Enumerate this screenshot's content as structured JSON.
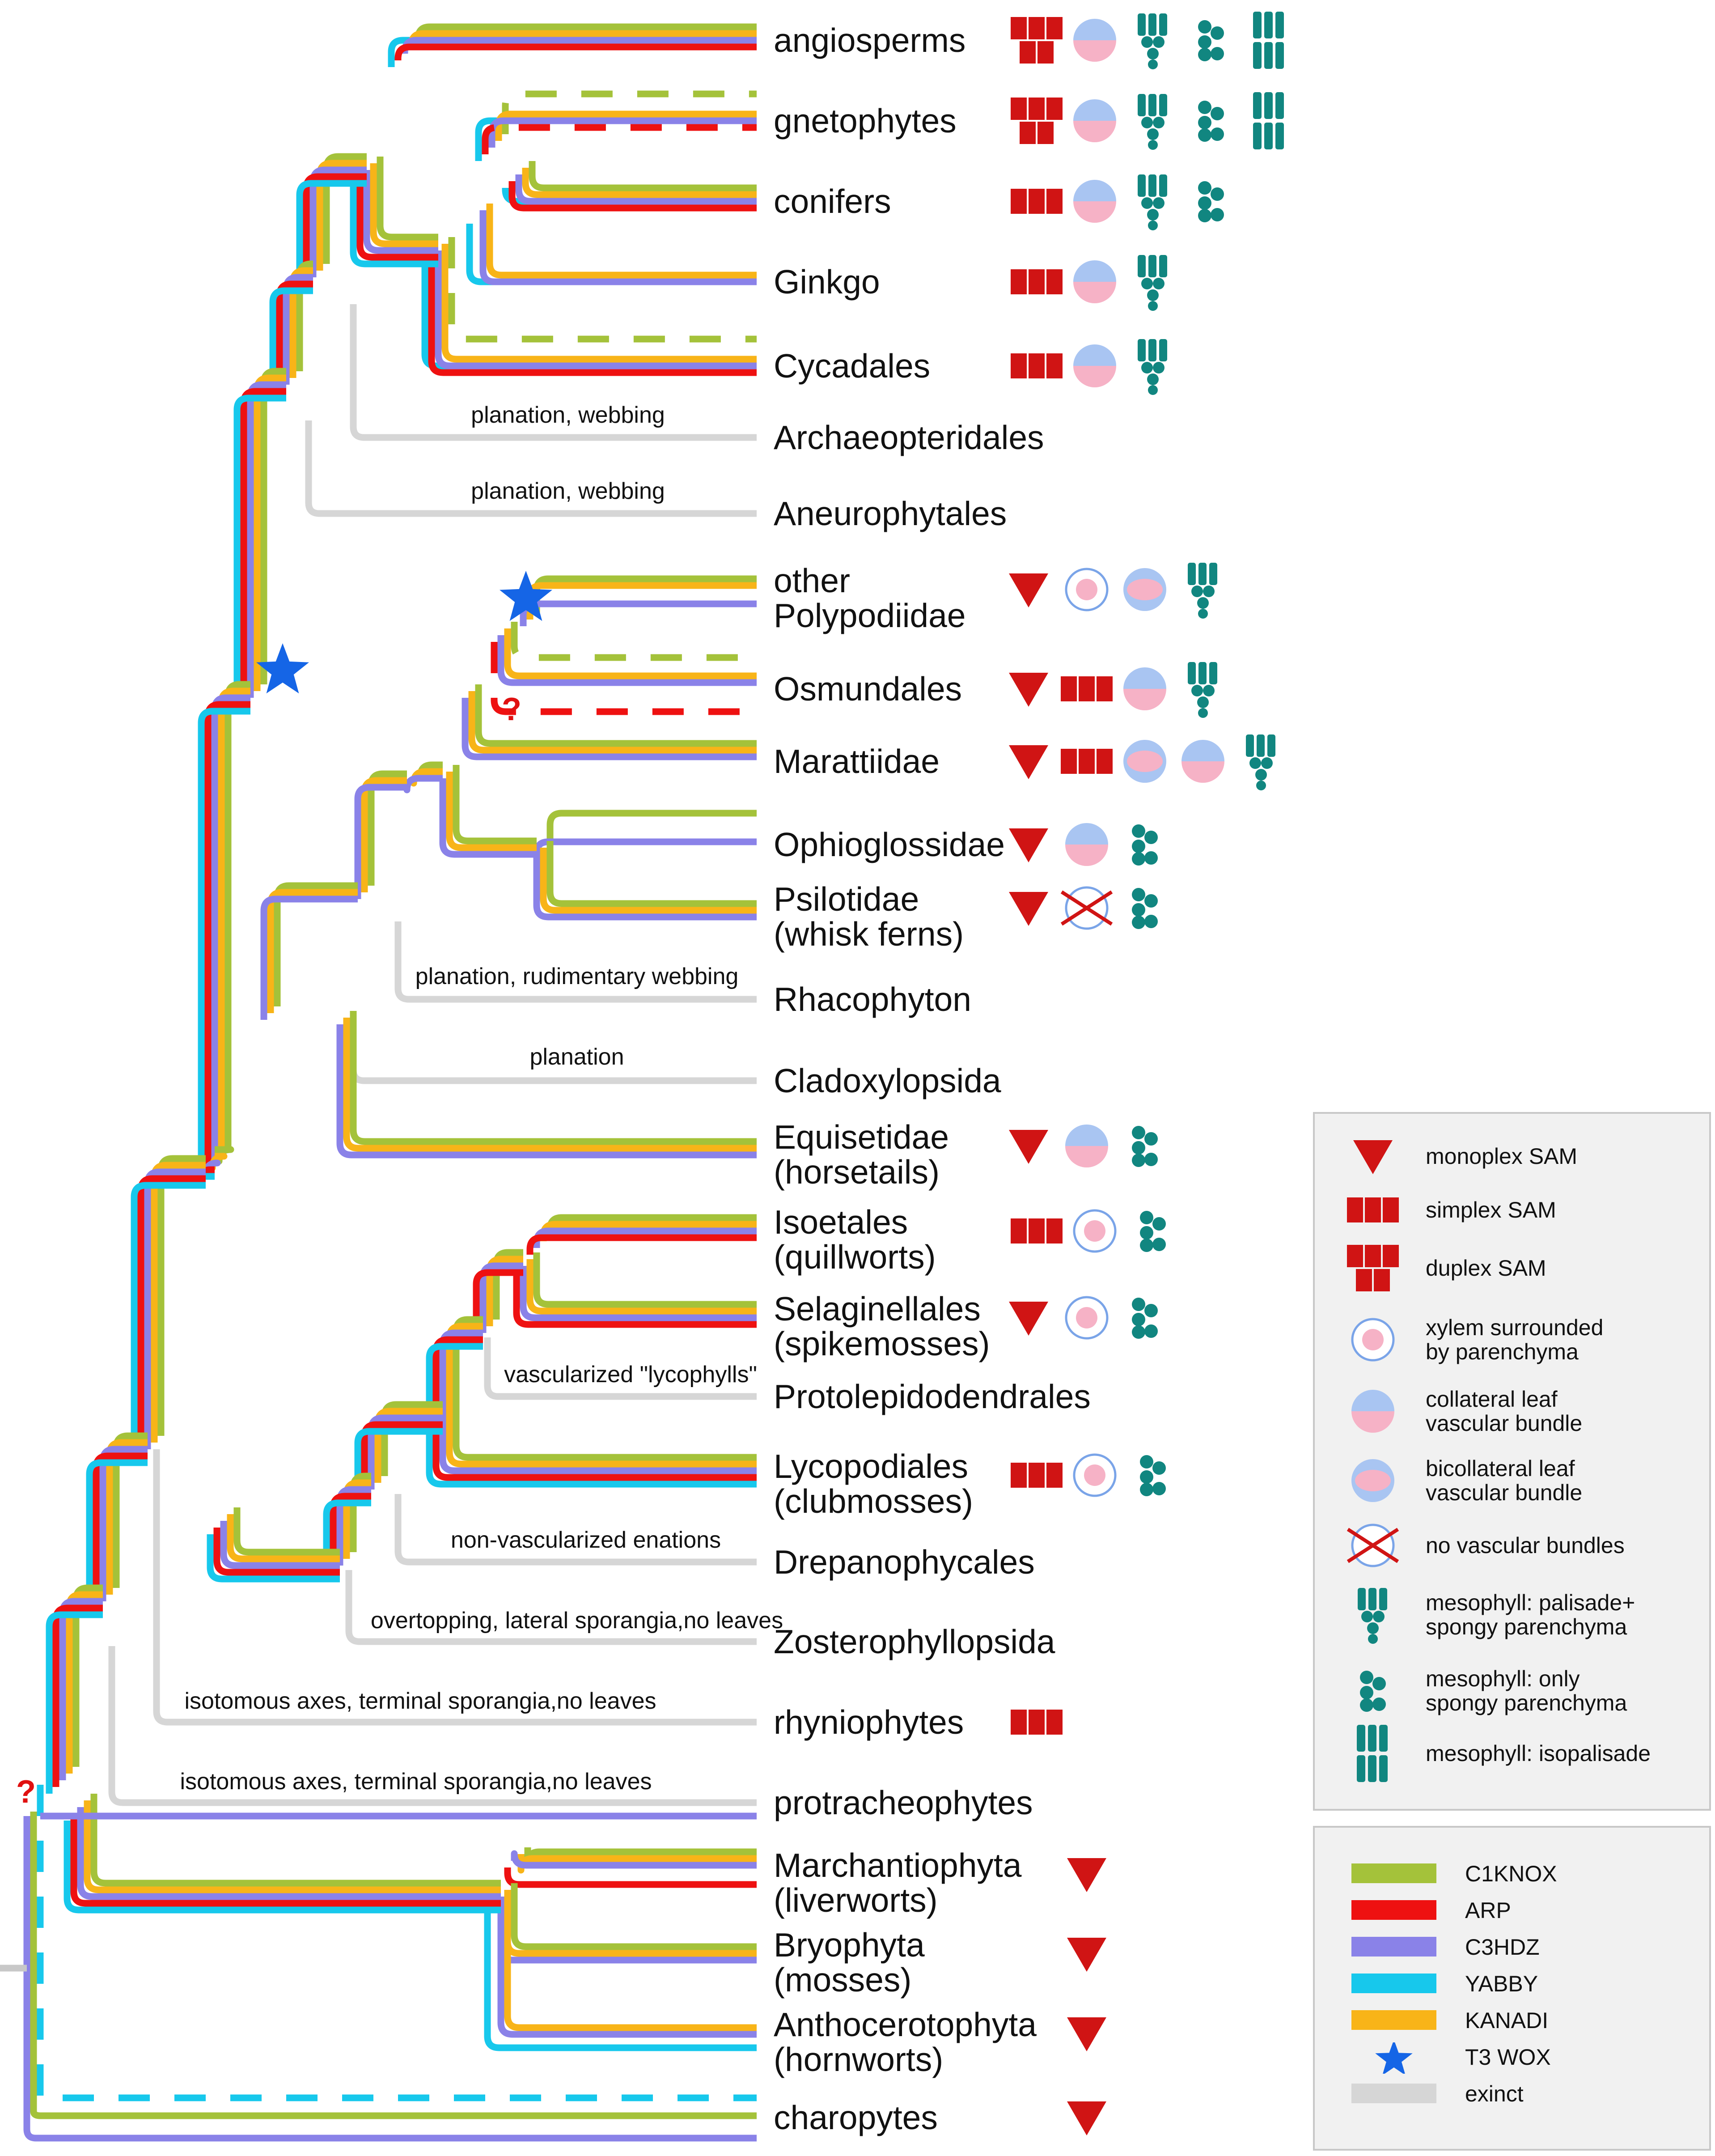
{
  "taxa": [
    {
      "id": "angio",
      "label": "angiosperms",
      "traits": [
        "duplex",
        "collateral",
        "palisade",
        "spongy",
        "isopalisade"
      ]
    },
    {
      "id": "gneto",
      "label": "gnetophytes",
      "traits": [
        "duplex",
        "collateral",
        "palisade",
        "spongy",
        "isopalisade"
      ]
    },
    {
      "id": "conif",
      "label": "conifers",
      "traits": [
        "simplex",
        "collateral",
        "palisade",
        "spongy"
      ]
    },
    {
      "id": "ginkgo",
      "label": "Ginkgo",
      "traits": [
        "simplex",
        "collateral",
        "palisade"
      ]
    },
    {
      "id": "cycad",
      "label": "Cycadales",
      "traits": [
        "simplex",
        "collateral",
        "palisade"
      ]
    },
    {
      "id": "archaeo",
      "label": "Archaeopteridales",
      "traits": []
    },
    {
      "id": "aneuro",
      "label": "Aneurophytales",
      "traits": []
    },
    {
      "id": "poly",
      "label": "other\nPolypodiidae",
      "traits": [
        "monoplex",
        "xylem",
        "bicollateral",
        "palisade"
      ]
    },
    {
      "id": "osmund",
      "label": "Osmundales",
      "traits": [
        "monoplex",
        "simplex",
        "collateral",
        "palisade"
      ]
    },
    {
      "id": "maratt",
      "label": "Marattiidae",
      "traits": [
        "monoplex",
        "simplex",
        "bicollateral",
        "collateral",
        "palisade"
      ]
    },
    {
      "id": "ophio",
      "label": "Ophioglossidae",
      "traits": [
        "monoplex",
        "collateral",
        "spongy"
      ]
    },
    {
      "id": "psilo",
      "label": "Psilotidae\n(whisk ferns)",
      "traits": [
        "monoplex",
        "novasc",
        "spongy"
      ]
    },
    {
      "id": "rhaco",
      "label": "Rhacophyton",
      "traits": []
    },
    {
      "id": "clado",
      "label": "Cladoxylopsida",
      "traits": []
    },
    {
      "id": "equis",
      "label": "Equisetidae\n(horsetails)",
      "traits": [
        "monoplex",
        "collateral",
        "spongy"
      ]
    },
    {
      "id": "isoet",
      "label": "Isoetales\n(quillworts)",
      "traits": [
        "simplex",
        "xylem",
        "spongy"
      ]
    },
    {
      "id": "selag",
      "label": "Selaginellales\n(spikemosses)",
      "traits": [
        "monoplex",
        "xylem",
        "spongy"
      ]
    },
    {
      "id": "protolep",
      "label": "Protolepidodendrales",
      "traits": []
    },
    {
      "id": "lycopod",
      "label": "Lycopodiales\n(clubmosses)",
      "traits": [
        "simplex",
        "xylem",
        "spongy"
      ]
    },
    {
      "id": "drepano",
      "label": "Drepanophycales",
      "traits": []
    },
    {
      "id": "zostero",
      "label": "Zosterophyllopsida",
      "traits": []
    },
    {
      "id": "rhynio",
      "label": "rhyniophytes",
      "traits": [
        "simplex"
      ]
    },
    {
      "id": "protrach",
      "label": "protracheophytes",
      "traits": []
    },
    {
      "id": "march",
      "label": "Marchantiophyta\n(liverworts)",
      "traits": [
        "monoplex"
      ]
    },
    {
      "id": "bryo",
      "label": "Bryophyta\n(mosses)",
      "traits": [
        "monoplex"
      ]
    },
    {
      "id": "antho",
      "label": "Anthocerotophyta\n(hornworts)",
      "traits": [
        "monoplex"
      ]
    },
    {
      "id": "charo",
      "label": "charopytes",
      "traits": [
        "monoplex"
      ]
    }
  ],
  "annotations": [
    {
      "id": "archaeo",
      "text": "planation, webbing"
    },
    {
      "id": "aneuro",
      "text": "planation, webbing"
    },
    {
      "id": "rhaco",
      "text": "planation, rudimentary webbing"
    },
    {
      "id": "clado",
      "text": "planation"
    },
    {
      "id": "protolep",
      "text": "vascularized \"lycophylls\""
    },
    {
      "id": "drepano",
      "text": "non-vascularized enations"
    },
    {
      "id": "zostero",
      "text": "overtopping, lateral sporangia,no leaves"
    },
    {
      "id": "rhynio",
      "text": "isotomous axes, terminal sporangia,no leaves"
    },
    {
      "id": "protrach",
      "text": "isotomous axes, terminal sporangia,no leaves"
    }
  ],
  "question_marks": [
    "?",
    "?"
  ],
  "genes": [
    {
      "id": "c1knox",
      "label": "C1KNOX",
      "color": "#a4c23a"
    },
    {
      "id": "arp",
      "label": "ARP",
      "color": "#ee1111"
    },
    {
      "id": "c3hdz",
      "label": "C3HDZ",
      "color": "#8a82e8"
    },
    {
      "id": "yabby",
      "label": "YABBY",
      "color": "#17c8ec"
    },
    {
      "id": "kanadi",
      "label": "KANADI",
      "color": "#f8b418"
    }
  ],
  "extinct_color": "#d6d6d6",
  "star_color": "#1565e6",
  "trait_colors": {
    "sam": "#d01414",
    "mesophyll": "#118680",
    "xylem_blue": "#a9c5f2",
    "xylem_pink": "#f6b2c6"
  },
  "legend_traits": [
    {
      "id": "monoplex",
      "icon": "monoplex-sam-icon",
      "label": "monoplex SAM"
    },
    {
      "id": "simplex",
      "icon": "simplex-sam-icon",
      "label": "simplex SAM"
    },
    {
      "id": "duplex",
      "icon": "duplex-sam-icon",
      "label": "duplex SAM"
    },
    {
      "id": "xylem",
      "icon": "xylem-parenchyma-icon",
      "label": "xylem surrounded\nby parenchyma"
    },
    {
      "id": "collateral",
      "icon": "collateral-bundle-icon",
      "label": "collateral leaf\nvascular bundle"
    },
    {
      "id": "bicollateral",
      "icon": "bicollateral-bundle-icon",
      "label": "bicollateral leaf\nvascular bundle"
    },
    {
      "id": "novasc",
      "icon": "no-vascular-bundles-icon",
      "label": "no vascular bundles"
    },
    {
      "id": "palisade",
      "icon": "palisade-spongy-icon",
      "label": "mesophyll: palisade+\nspongy parenchyma"
    },
    {
      "id": "spongy",
      "icon": "spongy-only-icon",
      "label": "mesophyll: only\nspongy parenchyma"
    },
    {
      "id": "isopalisade",
      "icon": "isopalisade-icon",
      "label": "mesophyll: isopalisade"
    }
  ],
  "legend_genes": [
    {
      "label": "C1KNOX",
      "color": "#a4c23a",
      "kind": "bar"
    },
    {
      "label": "ARP",
      "color": "#ee1111",
      "kind": "bar"
    },
    {
      "label": "C3HDZ",
      "color": "#8a82e8",
      "kind": "bar"
    },
    {
      "label": "YABBY",
      "color": "#17c8ec",
      "kind": "bar"
    },
    {
      "label": "KANADI",
      "color": "#f8b418",
      "kind": "bar"
    },
    {
      "label": "T3 WOX",
      "color": "#1565e6",
      "kind": "star"
    },
    {
      "label": "exinct",
      "color": "#d6d6d6",
      "kind": "bar"
    }
  ]
}
